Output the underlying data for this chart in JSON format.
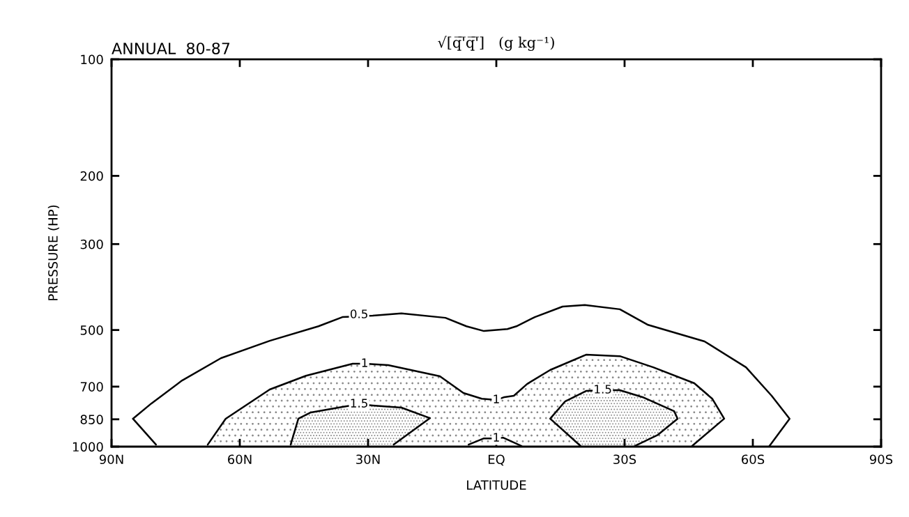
{
  "chart_data": {
    "type": "line",
    "title": "√[q̅'̅q̅'̅]   (g kg⁻¹)",
    "subtitle": "ANNUAL  80-87",
    "xlabel": "LATITUDE",
    "ylabel": "PRESSURE (HP)",
    "log": true,
    "xlim": [
      90,
      -90
    ],
    "ylim": [
      1000,
      100
    ],
    "xticks": [
      {
        "value": 90,
        "label": "90N"
      },
      {
        "value": 60,
        "label": "60N"
      },
      {
        "value": 30,
        "label": "30N"
      },
      {
        "value": 0,
        "label": "EQ"
      },
      {
        "value": -30,
        "label": "30S"
      },
      {
        "value": -60,
        "label": "60S"
      },
      {
        "value": -90,
        "label": "90S"
      }
    ],
    "yticks": [
      100,
      200,
      300,
      500,
      700,
      850,
      1000
    ],
    "grid": false,
    "legend": false,
    "series": [
      {
        "color": "#000000",
        "x": [
          79.6,
          85.0,
          80.7,
          73.5,
          64.4,
          53.0,
          41.6,
          36.0,
          28.9,
          22.2,
          11.9,
          7.0,
          2.9,
          -2.6,
          -4.7,
          -9.0,
          -15.5,
          -20.7,
          -28.9,
          -35.5,
          -48.7,
          -58.4,
          -64.4,
          -68.6,
          -63.9
        ],
        "values": [
          988,
          847,
          774,
          675,
          591,
          533,
          489,
          463,
          459,
          453,
          465,
          489,
          503,
          497,
          489,
          463,
          435,
          431,
          442,
          485,
          535,
          624,
          739,
          847,
          996
        ]
      },
      {
        "type": "area",
        "color": "#000000",
        "x": [
          67.5,
          63.3,
          53.0,
          44.5,
          33.6,
          30.7,
          25.3,
          13.2,
          7.7,
          3.4,
          0,
          -1.9,
          -4.1,
          -7.2,
          -12.6,
          -21.0,
          -28.9,
          -36.7,
          -46.3,
          -50.5,
          -53.3,
          -45.8
        ],
        "values": [
          988,
          847,
          712,
          656,
          611,
          611,
          616,
          658,
          727,
          752,
          758,
          745,
          739,
          689,
          634,
          579,
          584,
          624,
          686,
          752,
          847,
          996
        ]
      },
      {
        "color": "#000000",
        "x": [
          6.5,
          2.9,
          0,
          -1.6,
          -5.9
        ],
        "values": [
          988,
          952,
          952,
          948,
          996
        ]
      },
      {
        "type": "area",
        "color": "#000000",
        "x": [
          48.1,
          46.3,
          43.4,
          36.0,
          32.1,
          28.9,
          22.2,
          15.5,
          24.0
        ],
        "values": [
          988,
          847,
          816,
          790,
          777,
          783,
          793,
          844,
          988
        ]
      },
      {
        "type": "area",
        "color": "#000000",
        "x": [
          -19.7,
          -12.6,
          -16.1,
          -21.0,
          -24.9,
          -28.9,
          -34.2,
          -41.6,
          -42.4,
          -37.8,
          -32.4
        ],
        "values": [
          996,
          847,
          764,
          718,
          715,
          715,
          745,
          810,
          847,
          932,
          996
        ]
      }
    ],
    "annotations": [
      {
        "text": "0.5",
        "x": 32.1,
        "y": 457
      },
      {
        "text": "1",
        "x": 30.8,
        "y": 611
      },
      {
        "text": "1",
        "x": 0,
        "y": 758
      },
      {
        "text": "1",
        "x": 0,
        "y": 952
      },
      {
        "text": "1.5",
        "x": 32.1,
        "y": 777
      },
      {
        "text": "1.5",
        "x": -24.9,
        "y": 715
      }
    ]
  }
}
